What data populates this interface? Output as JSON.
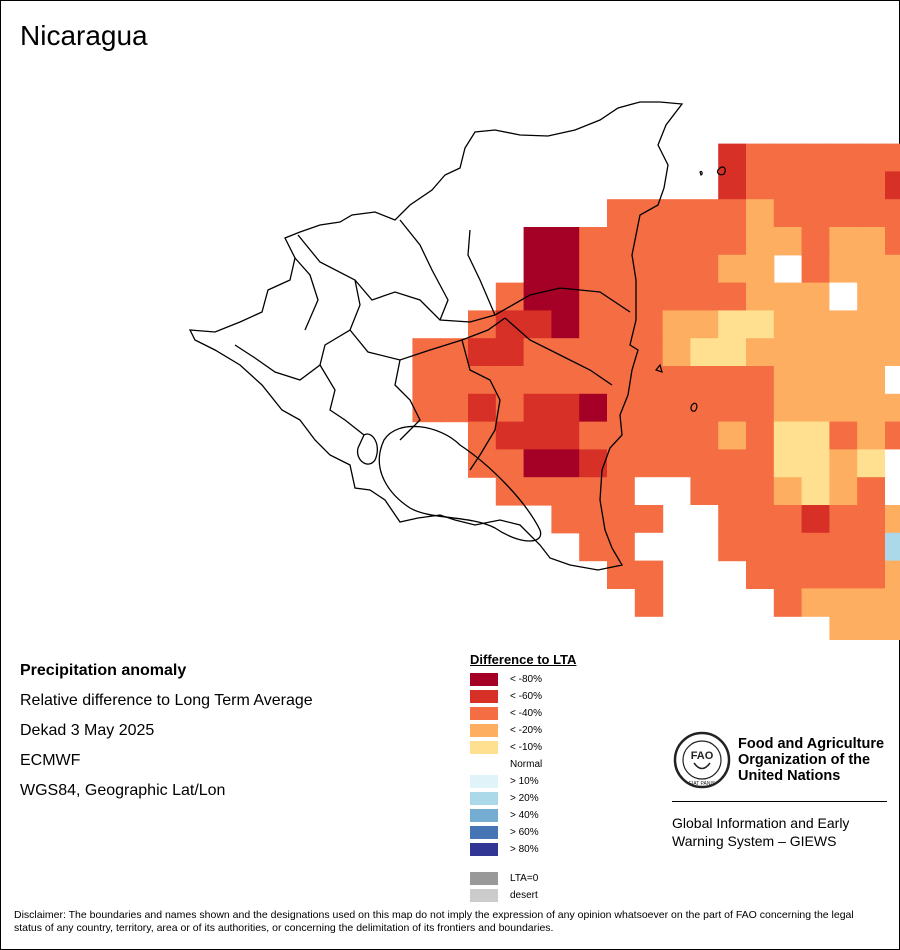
{
  "map": {
    "title": "Nicaragua",
    "info": {
      "heading": "Precipitation anomaly",
      "line1": "Relative difference to Long Term Average",
      "line2": "Dekad 3 May 2025",
      "line3": "ECMWF",
      "line4": "WGS84, Geographic Lat/Lon"
    }
  },
  "legend": {
    "title": "Difference to LTA",
    "items": [
      {
        "label": "< -80%",
        "color": "#a50026"
      },
      {
        "label": "< -60%",
        "color": "#d73027"
      },
      {
        "label": "< -40%",
        "color": "#f46d43"
      },
      {
        "label": "< -20%",
        "color": "#fdae61"
      },
      {
        "label": "< -10%",
        "color": "#fee090"
      },
      {
        "label": "Normal",
        "color": "#ffffff"
      },
      {
        "label": "> 10%",
        "color": "#e0f3f8"
      },
      {
        "label": "> 20%",
        "color": "#abd9e9"
      },
      {
        "label": "> 40%",
        "color": "#74add1"
      },
      {
        "label": "> 60%",
        "color": "#4575b4"
      },
      {
        "label": "> 80%",
        "color": "#313695"
      }
    ],
    "extra": [
      {
        "label": "LTA=0",
        "color": "#999999"
      },
      {
        "label": "desert",
        "color": "#cccccc"
      }
    ]
  },
  "fao": {
    "org_line1": "Food and Agriculture",
    "org_line2": "Organization of the",
    "org_line3": "United Nations",
    "emblem_letters": "FAO",
    "emblem_motto": "FIAT PANIS",
    "giews_line1": "Global Information and Early",
    "giews_line2": "Warning System – GIEWS"
  },
  "disclaimer": "Disclaimer: The boundaries and names shown and the designations used on this map do not imply the expression of any opinion whatsoever on the part of FAO concerning the legal status of any country, territory, area or of its authorities, or concerning the delimitation of its frontiers and boundaries.",
  "grid_codes": [
    "............................4.........",
    "............................45........",
    "...................1222222222453......",
    "...................1222221221233......",
    "...............2222232222222233.......",
    "............0022222233233222333.......",
    "............002222233.233333335.......",
    "...........2002222223335333332........",
    "..........21102223344333333333........",
    "........2211222223443333333333........",
    "........2222222222222333355.2.........",
    "........2212110222222333332.5.........",
    "..........21112222232442323.55........",
    "..........2200122222244345666.........",
    "...........22222552223432555..........",
    ".............2222.5222122356..........",
    "..............225..22222279...........",
    "...............22...2222238...........",
    "................2....233338...........",
    ".......................3337...........",
    ".......................3.6............"
  ]
}
